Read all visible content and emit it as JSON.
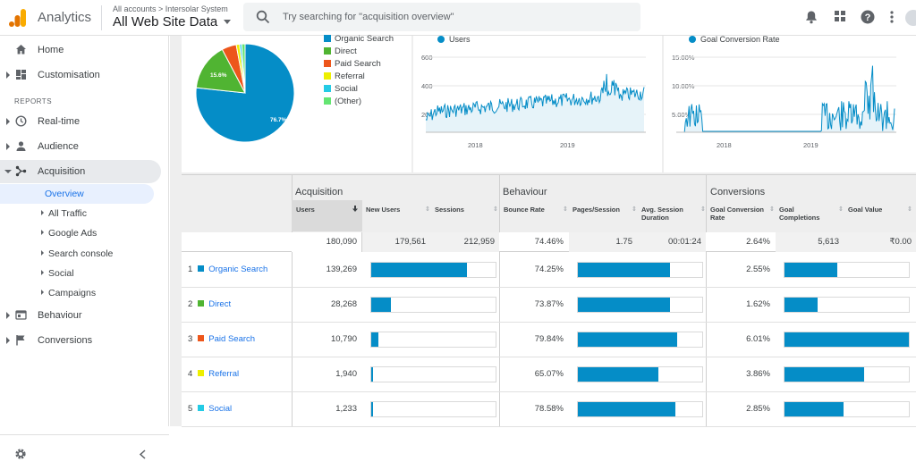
{
  "header": {
    "app_name": "Analytics",
    "breadcrumb": "All accounts > Intersolar System",
    "view_name": "All Web Site Data",
    "search_placeholder": "Try searching for \"acquisition overview\"",
    "icons": [
      "bell-icon",
      "apps-grid-icon",
      "help-icon",
      "more-vert-icon",
      "account-avatar"
    ]
  },
  "sidebar": {
    "top_items": [
      {
        "label": "Home",
        "icon": "home-icon"
      },
      {
        "label": "Customisation",
        "icon": "dashboard-icon"
      }
    ],
    "reports_header": "REPORTS",
    "report_items": [
      {
        "label": "Real-time",
        "icon": "clock-icon"
      },
      {
        "label": "Audience",
        "icon": "person-icon"
      },
      {
        "label": "Acquisition",
        "icon": "acquisition-icon"
      }
    ],
    "acquisition_sub": [
      "Overview",
      "All Traffic",
      "Google Ads",
      "Search console",
      "Social",
      "Campaigns"
    ],
    "bottom_items": [
      {
        "label": "Behaviour",
        "icon": "behaviour-icon"
      },
      {
        "label": "Conversions",
        "icon": "flag-icon"
      }
    ],
    "footer_icons": [
      "settings-gear-icon",
      "collapse-chevron-icon"
    ]
  },
  "pie": {
    "legend": [
      "Organic Search",
      "Direct",
      "Paid Search",
      "Referral",
      "Social",
      "(Other)"
    ],
    "colors": [
      "#058dc7",
      "#50b432",
      "#ed561b",
      "#edef00",
      "#24cbe5",
      "#64e572"
    ],
    "shares": [
      76.7,
      15.6,
      4.8,
      1.1,
      0.7,
      1.1
    ],
    "labels": [
      "76.7%",
      "15.6%"
    ]
  },
  "users_chart": {
    "legend": "Users",
    "y_ticks": [
      "600",
      "400",
      "200"
    ],
    "x_ticks": [
      "2018",
      "2019"
    ],
    "color": "#058dc7"
  },
  "gcr_chart": {
    "legend": "Goal Conversion Rate",
    "y_ticks": [
      "15.00%",
      "10.00%",
      "5.00%"
    ],
    "x_ticks": [
      "2018",
      "2019"
    ],
    "color": "#058dc7"
  },
  "table": {
    "groups": [
      "Acquisition",
      "Behaviour",
      "Conversions"
    ],
    "columns": [
      "Users",
      "New Users",
      "Sessions",
      "Bounce Rate",
      "Pages/Session",
      "Avg. Session Duration",
      "Goal Conversion Rate",
      "Goal Completions",
      "Goal Value"
    ],
    "totals": [
      "180,090",
      "179,561",
      "212,959",
      "74.46%",
      "1.75",
      "00:01:24",
      "2.64%",
      "5,613",
      "₹0.00"
    ],
    "rows": [
      {
        "num": "1",
        "name": "Organic Search",
        "color": "#058dc7",
        "users": "139,269",
        "bounce": "74.25%",
        "gcr": "2.55%",
        "users_share": 0.7733,
        "bounce_share": 0.7425,
        "gcr_share": 0.4243
      },
      {
        "num": "2",
        "name": "Direct",
        "color": "#50b432",
        "users": "28,268",
        "bounce": "73.87%",
        "gcr": "1.62%",
        "users_share": 0.157,
        "bounce_share": 0.7387,
        "gcr_share": 0.2696
      },
      {
        "num": "3",
        "name": "Paid Search",
        "color": "#ed561b",
        "users": "10,790",
        "bounce": "79.84%",
        "gcr": "6.01%",
        "users_share": 0.0599,
        "bounce_share": 0.7984,
        "gcr_share": 1.0
      },
      {
        "num": "4",
        "name": "Referral",
        "color": "#edef00",
        "users": "1,940",
        "bounce": "65.07%",
        "gcr": "3.86%",
        "users_share": 0.0108,
        "bounce_share": 0.6507,
        "gcr_share": 0.6423
      },
      {
        "num": "5",
        "name": "Social",
        "color": "#24cbe5",
        "users": "1,233",
        "bounce": "78.58%",
        "gcr": "2.85%",
        "users_share": 0.0068,
        "bounce_share": 0.7858,
        "gcr_share": 0.4742
      }
    ]
  }
}
